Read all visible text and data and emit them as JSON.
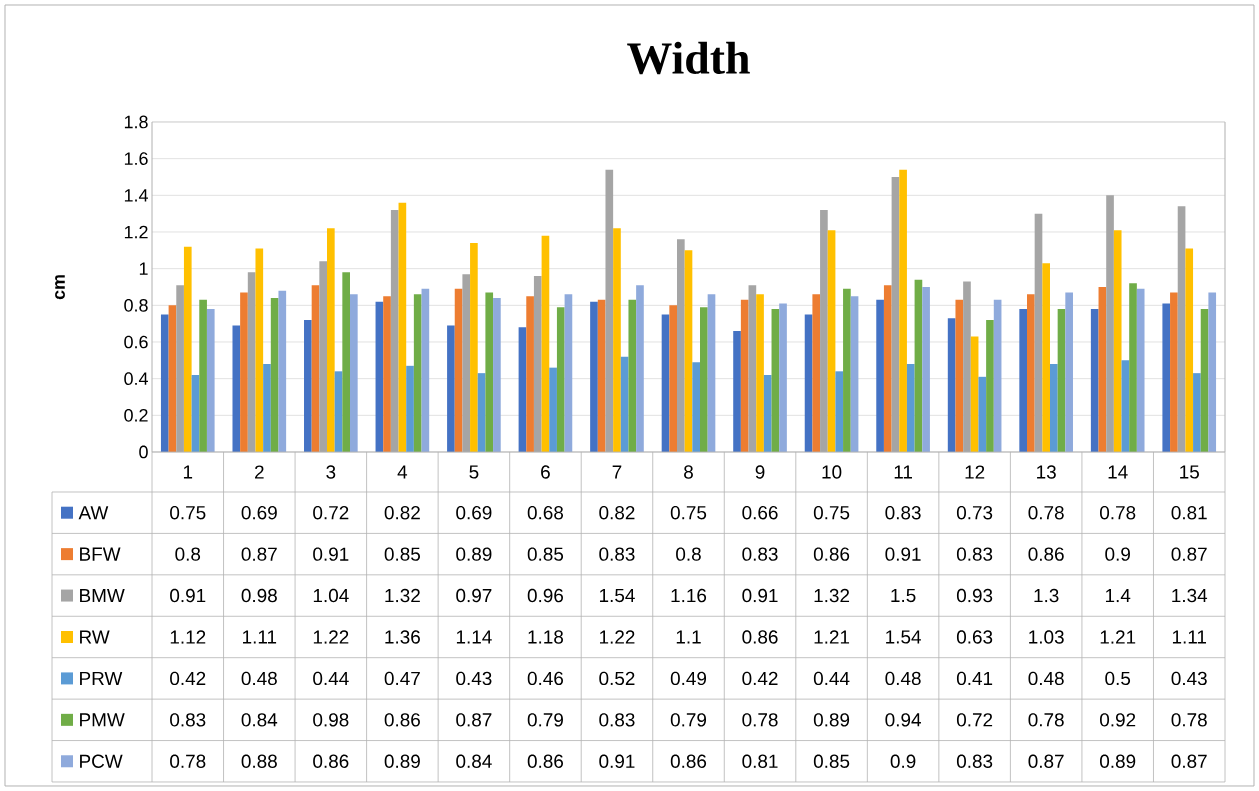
{
  "chart_data": {
    "type": "bar",
    "title": "Width",
    "ylabel": "cm",
    "categories": [
      "1",
      "2",
      "3",
      "4",
      "5",
      "6",
      "7",
      "8",
      "9",
      "10",
      "11",
      "12",
      "13",
      "14",
      "15"
    ],
    "series": [
      {
        "name": "AW",
        "color": "#4472c4",
        "values": [
          0.75,
          0.69,
          0.72,
          0.82,
          0.69,
          0.68,
          0.82,
          0.75,
          0.66,
          0.75,
          0.83,
          0.73,
          0.78,
          0.78,
          0.81
        ]
      },
      {
        "name": "BFW",
        "color": "#ed7d31",
        "values": [
          0.8,
          0.87,
          0.91,
          0.85,
          0.89,
          0.85,
          0.83,
          0.8,
          0.83,
          0.86,
          0.91,
          0.83,
          0.86,
          0.9,
          0.87
        ]
      },
      {
        "name": "BMW",
        "color": "#a5a5a5",
        "values": [
          0.91,
          0.98,
          1.04,
          1.32,
          0.97,
          0.96,
          1.54,
          1.16,
          0.91,
          1.32,
          1.5,
          0.93,
          1.3,
          1.4,
          1.34
        ]
      },
      {
        "name": "RW",
        "color": "#ffc000",
        "values": [
          1.12,
          1.11,
          1.22,
          1.36,
          1.14,
          1.18,
          1.22,
          1.1,
          0.86,
          1.21,
          1.54,
          0.63,
          1.03,
          1.21,
          1.11
        ]
      },
      {
        "name": "PRW",
        "color": "#5b9bd5",
        "values": [
          0.42,
          0.48,
          0.44,
          0.47,
          0.43,
          0.46,
          0.52,
          0.49,
          0.42,
          0.44,
          0.48,
          0.41,
          0.48,
          0.5,
          0.43
        ]
      },
      {
        "name": "PMW",
        "color": "#70ad47",
        "values": [
          0.83,
          0.84,
          0.98,
          0.86,
          0.87,
          0.79,
          0.83,
          0.79,
          0.78,
          0.89,
          0.94,
          0.72,
          0.78,
          0.92,
          0.78
        ]
      },
      {
        "name": "PCW",
        "color": "#8faadc",
        "values": [
          0.78,
          0.88,
          0.86,
          0.89,
          0.84,
          0.86,
          0.91,
          0.86,
          0.81,
          0.85,
          0.9,
          0.83,
          0.87,
          0.89,
          0.87
        ]
      }
    ],
    "ylim": [
      0,
      1.8
    ],
    "yticks": [
      0,
      0.2,
      0.4,
      0.6,
      0.8,
      1,
      1.2,
      1.4,
      1.6,
      1.8
    ],
    "grid": "y",
    "legend": "bottom",
    "data_labels": true
  }
}
